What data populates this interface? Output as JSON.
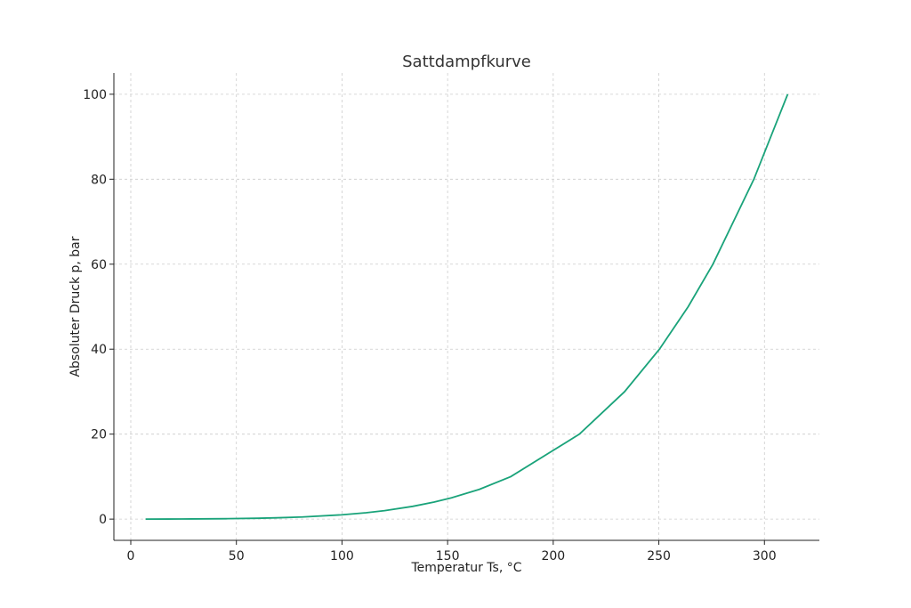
{
  "chart_data": {
    "type": "line",
    "title": "Sattdampfkurve",
    "xlabel": "Temperatur Ts, °C",
    "ylabel": "Absoluter Druck p, bar",
    "xlim": [
      -8,
      326
    ],
    "ylim": [
      -5,
      105
    ],
    "xticks": [
      0,
      50,
      100,
      150,
      200,
      250,
      300
    ],
    "yticks": [
      0,
      20,
      40,
      60,
      80,
      100
    ],
    "xtick_labels": [
      "0",
      "50",
      "100",
      "150",
      "200",
      "250",
      "300"
    ],
    "ytick_labels": [
      "0",
      "20",
      "40",
      "60",
      "80",
      "100"
    ],
    "grid": true,
    "series": [
      {
        "color": "#1aa37a",
        "x": [
          7,
          17.5,
          24,
          29,
          46,
          60,
          69,
          81.3,
          99.6,
          111.4,
          120.2,
          133.5,
          143.6,
          151.8,
          165,
          179.9,
          212.4,
          233.8,
          250.3,
          263.9,
          275.6,
          295,
          311
        ],
        "y": [
          0.01,
          0.02,
          0.03,
          0.04,
          0.1,
          0.2,
          0.3,
          0.5,
          1,
          1.5,
          2,
          3,
          4,
          5,
          7,
          10,
          20,
          30,
          40,
          50,
          60,
          80,
          100
        ]
      }
    ]
  }
}
